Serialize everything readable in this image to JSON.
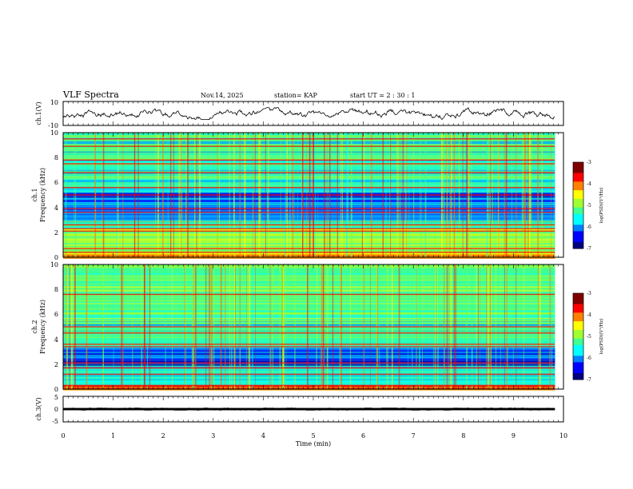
{
  "header": {
    "title": "VLF Spectra",
    "date": "Nov.14, 2025",
    "station": "station= KAP",
    "start_ut": "start  UT  =   2  : 30 : 1"
  },
  "chart_data": [
    {
      "type": "line",
      "panel": "ch1-waveform",
      "ylabel": "ch.1(V)",
      "ylim": [
        -10,
        10
      ],
      "yticks": [
        "10",
        "-10"
      ],
      "xlim": [
        0,
        9.83
      ],
      "x_unit": "min",
      "series": [
        {
          "name": "ch.1 waveform",
          "amplitude_range_v": [
            -4.5,
            5
          ]
        }
      ]
    },
    {
      "type": "heatmap",
      "panel": "ch1-spectrogram",
      "ylabel": "ch.1 Frequency (kHz)",
      "ylim": [
        0,
        10
      ],
      "yticks": [
        "0",
        "2",
        "4",
        "6",
        "8",
        "10"
      ],
      "xlim": [
        0,
        9.83
      ],
      "color_scale": {
        "label": "log(PSD)(V²/Hz)",
        "range": [
          -7,
          -3
        ],
        "ticks": [
          "-3",
          "-4",
          "-5",
          "-6",
          "-7"
        ]
      },
      "bands": [
        {
          "freq_khz": [
            0.0,
            0.35
          ],
          "level": -3.8
        },
        {
          "freq_khz": [
            0.35,
            2.4
          ],
          "level": -4.9
        },
        {
          "freq_khz": [
            2.4,
            3.0
          ],
          "level": -5.4
        },
        {
          "freq_khz": [
            3.0,
            4.2
          ],
          "level": -6.0
        },
        {
          "freq_khz": [
            4.2,
            5.2
          ],
          "level": -6.2
        },
        {
          "freq_khz": [
            5.2,
            6.3
          ],
          "level": -5.5
        },
        {
          "freq_khz": [
            6.3,
            10.0
          ],
          "level": -5.3
        }
      ],
      "lines_khz": [
        0.4,
        0.7,
        2.1,
        2.3,
        2.6,
        3.6,
        3.9,
        5.0,
        5.6,
        6.8,
        7.5,
        7.8,
        8.9,
        9.5
      ]
    },
    {
      "type": "heatmap",
      "panel": "ch2-spectrogram",
      "ylabel": "ch.2 Frequency (kHz)",
      "ylim": [
        0,
        10
      ],
      "yticks": [
        "0",
        "2",
        "4",
        "6",
        "8",
        "10"
      ],
      "xlim": [
        0,
        9.83
      ],
      "color_scale": {
        "label": "log(PSD)(V²/Hz)",
        "range": [
          -7,
          -3
        ],
        "ticks": [
          "-3",
          "-4",
          "-5",
          "-6",
          "-7"
        ]
      },
      "bands": [
        {
          "freq_khz": [
            0.0,
            0.35
          ],
          "level": -3.9
        },
        {
          "freq_khz": [
            0.35,
            2.0
          ],
          "level": -5.6
        },
        {
          "freq_khz": [
            2.0,
            3.4
          ],
          "level": -6.3
        },
        {
          "freq_khz": [
            3.4,
            5.5
          ],
          "level": -5.3
        },
        {
          "freq_khz": [
            5.5,
            10.0
          ],
          "level": -5.1
        }
      ],
      "lines_khz": [
        0.3,
        1.2,
        1.7,
        2.1,
        3.4,
        3.6,
        4.5,
        5.0,
        7.6
      ]
    },
    {
      "type": "line",
      "panel": "ch3-waveform",
      "ylabel": "ch.3(V)",
      "ylim": [
        -5,
        5
      ],
      "yticks": [
        "5",
        "0",
        "-5"
      ],
      "xlim": [
        0,
        9.83
      ],
      "series": [
        {
          "name": "ch.3 waveform",
          "amplitude_range_v": [
            -0.45,
            0.45
          ]
        }
      ]
    }
  ],
  "x_axis": {
    "label": "Time  (min)",
    "range": [
      0,
      10
    ],
    "ticks": [
      "0",
      "1",
      "2",
      "3",
      "4",
      "5",
      "6",
      "7",
      "8",
      "9",
      "10"
    ]
  },
  "colormap": [
    "#000080",
    "#0000ff",
    "#0080ff",
    "#00ffff",
    "#40ff90",
    "#a0ff30",
    "#ffff00",
    "#ff8000",
    "#ff0000",
    "#800000"
  ]
}
